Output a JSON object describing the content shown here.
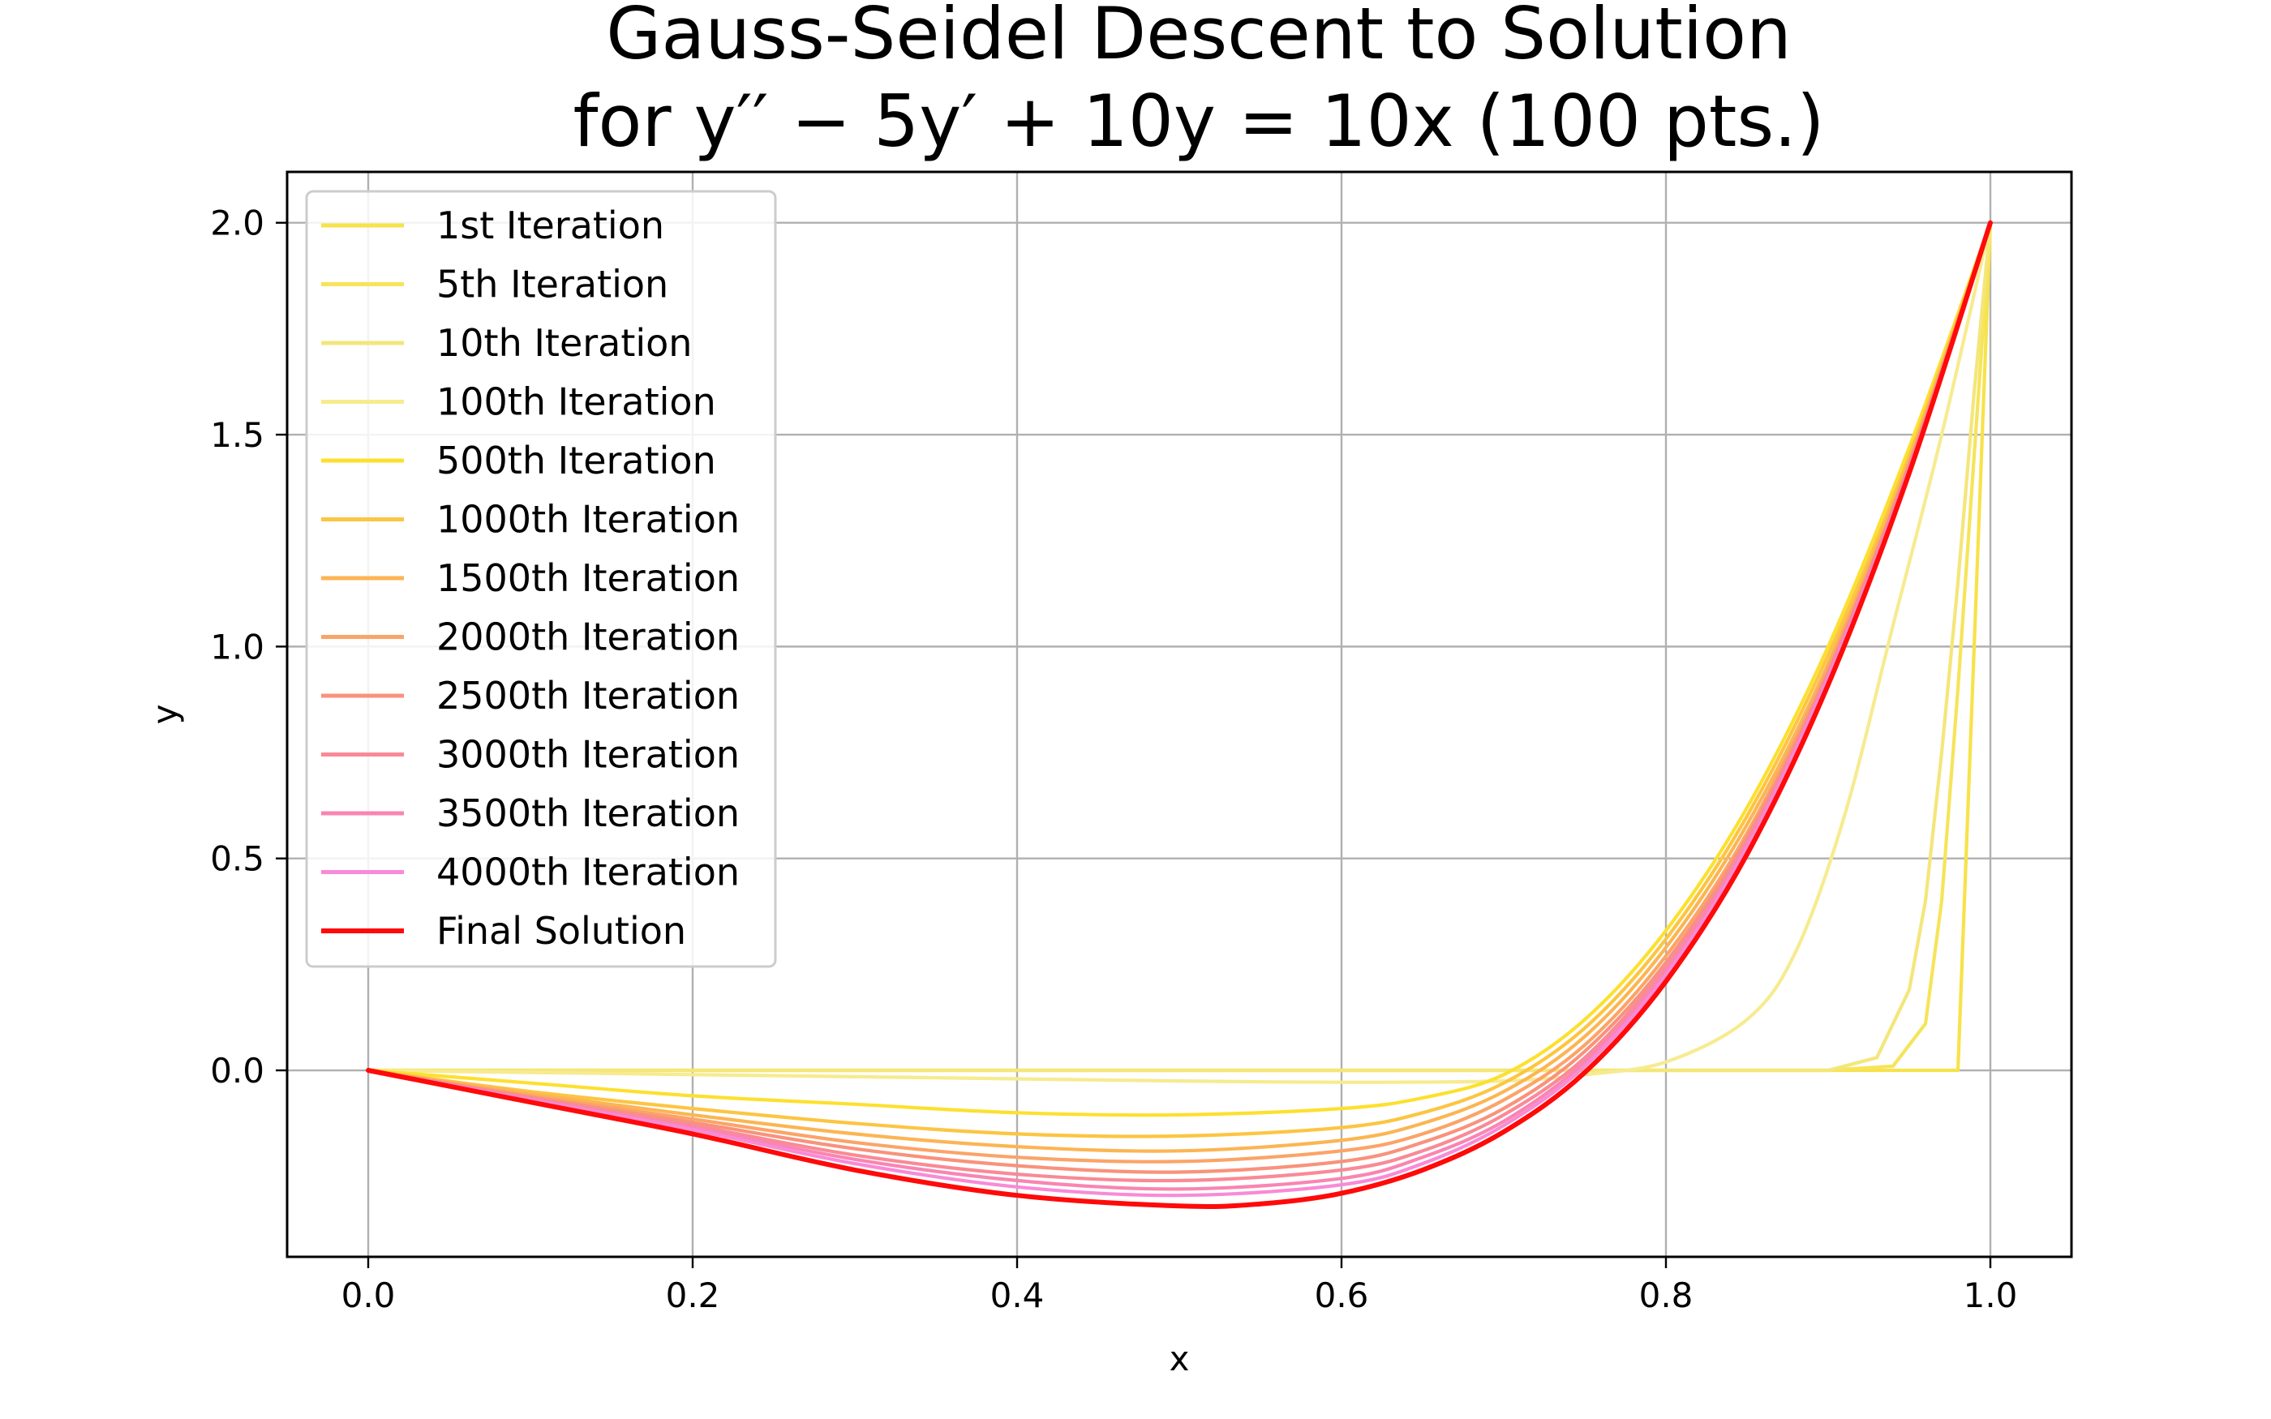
{
  "chart_data": {
    "type": "line",
    "title_line1": "Gauss-Seidel Descent to Solution",
    "title_line2": "for y′′ − 5y′ + 10y = 10x (100 pts.)",
    "xlabel": "x",
    "ylabel": "y",
    "xlim": [
      -0.05,
      1.05
    ],
    "ylim": [
      -0.44,
      2.12
    ],
    "xticks": [
      "0.0",
      "0.2",
      "0.4",
      "0.6",
      "0.8",
      "1.0"
    ],
    "yticks": [
      "0.0",
      "0.5",
      "1.0",
      "1.5",
      "2.0"
    ],
    "grid": true,
    "legend_position": "top-left",
    "series": [
      {
        "name": "1st Iteration",
        "color": "#f7e24a",
        "x": [
          0,
          0.1,
          0.2,
          0.3,
          0.4,
          0.5,
          0.6,
          0.7,
          0.8,
          0.9,
          0.95,
          0.97,
          0.98,
          0.99,
          1.0
        ],
        "y": [
          0,
          0,
          0,
          0,
          0,
          0,
          0,
          0,
          0,
          0,
          0,
          0,
          0,
          1.0,
          2.0
        ]
      },
      {
        "name": "5th Iteration",
        "color": "#f6e45a",
        "x": [
          0,
          0.2,
          0.4,
          0.6,
          0.8,
          0.9,
          0.94,
          0.96,
          0.97,
          0.98,
          0.99,
          1.0
        ],
        "y": [
          0,
          0,
          0,
          0,
          0,
          0,
          0.01,
          0.11,
          0.4,
          0.9,
          1.45,
          2.0
        ]
      },
      {
        "name": "10th Iteration",
        "color": "#f4e67a",
        "x": [
          0,
          0.2,
          0.4,
          0.6,
          0.8,
          0.9,
          0.93,
          0.95,
          0.96,
          0.97,
          0.98,
          0.99,
          1.0
        ],
        "y": [
          0,
          0,
          0,
          0,
          0,
          0,
          0.03,
          0.19,
          0.4,
          0.75,
          1.15,
          1.6,
          2.0
        ]
      },
      {
        "name": "100th Iteration",
        "color": "#f6eb8f",
        "x": [
          0,
          0.1,
          0.2,
          0.3,
          0.4,
          0.5,
          0.6,
          0.7,
          0.75,
          0.8,
          0.85,
          0.88,
          0.91,
          0.94,
          0.97,
          1.0
        ],
        "y": [
          0,
          -0.005,
          -0.01,
          -0.015,
          -0.02,
          -0.025,
          -0.028,
          -0.025,
          -0.01,
          0.02,
          0.12,
          0.28,
          0.6,
          1.05,
          1.5,
          2.0
        ]
      },
      {
        "name": "500th Iteration",
        "color": "#fde02f",
        "x": [
          0,
          0.1,
          0.2,
          0.3,
          0.4,
          0.5,
          0.6,
          0.65,
          0.7,
          0.75,
          0.8,
          0.85,
          0.9,
          0.95,
          1.0
        ],
        "y": [
          0,
          -0.03,
          -0.06,
          -0.08,
          -0.1,
          -0.105,
          -0.09,
          -0.065,
          -0.01,
          0.12,
          0.33,
          0.62,
          1.0,
          1.47,
          2.0
        ]
      },
      {
        "name": "1000th Iteration",
        "color": "#fcc542",
        "x": [
          0,
          0.1,
          0.2,
          0.3,
          0.4,
          0.5,
          0.6,
          0.65,
          0.7,
          0.75,
          0.8,
          0.85,
          0.9,
          0.95,
          1.0
        ],
        "y": [
          0,
          -0.05,
          -0.09,
          -0.125,
          -0.15,
          -0.155,
          -0.135,
          -0.1,
          -0.03,
          0.1,
          0.31,
          0.6,
          0.98,
          1.45,
          2.0
        ]
      },
      {
        "name": "1500th Iteration",
        "color": "#fcb553",
        "x": [
          0,
          0.1,
          0.2,
          0.3,
          0.4,
          0.5,
          0.6,
          0.65,
          0.7,
          0.75,
          0.8,
          0.85,
          0.9,
          0.95,
          1.0
        ],
        "y": [
          0,
          -0.055,
          -0.105,
          -0.15,
          -0.18,
          -0.19,
          -0.165,
          -0.125,
          -0.05,
          0.08,
          0.29,
          0.58,
          0.96,
          1.44,
          2.0
        ]
      },
      {
        "name": "2000th Iteration",
        "color": "#fba468",
        "x": [
          0,
          0.1,
          0.2,
          0.3,
          0.4,
          0.5,
          0.6,
          0.65,
          0.7,
          0.75,
          0.8,
          0.85,
          0.9,
          0.95,
          1.0
        ],
        "y": [
          0,
          -0.06,
          -0.115,
          -0.17,
          -0.205,
          -0.215,
          -0.19,
          -0.15,
          -0.07,
          0.06,
          0.27,
          0.56,
          0.95,
          1.43,
          2.0
        ]
      },
      {
        "name": "2500th Iteration",
        "color": "#f9927c",
        "x": [
          0,
          0.1,
          0.2,
          0.3,
          0.4,
          0.5,
          0.6,
          0.65,
          0.7,
          0.75,
          0.8,
          0.85,
          0.9,
          0.95,
          1.0
        ],
        "y": [
          0,
          -0.063,
          -0.123,
          -0.185,
          -0.225,
          -0.24,
          -0.215,
          -0.17,
          -0.09,
          0.045,
          0.255,
          0.55,
          0.94,
          1.43,
          2.0
        ]
      },
      {
        "name": "3000th Iteration",
        "color": "#f98a96",
        "x": [
          0,
          0.1,
          0.2,
          0.3,
          0.4,
          0.5,
          0.6,
          0.65,
          0.7,
          0.75,
          0.8,
          0.85,
          0.9,
          0.95,
          1.0
        ],
        "y": [
          0,
          -0.066,
          -0.13,
          -0.2,
          -0.245,
          -0.26,
          -0.235,
          -0.19,
          -0.105,
          0.03,
          0.245,
          0.54,
          0.935,
          1.425,
          2.0
        ]
      },
      {
        "name": "3500th Iteration",
        "color": "#f985b2",
        "x": [
          0,
          0.1,
          0.2,
          0.3,
          0.4,
          0.5,
          0.6,
          0.65,
          0.7,
          0.75,
          0.8,
          0.85,
          0.9,
          0.95,
          1.0
        ],
        "y": [
          0,
          -0.068,
          -0.135,
          -0.21,
          -0.26,
          -0.28,
          -0.255,
          -0.205,
          -0.12,
          0.02,
          0.235,
          0.535,
          0.93,
          1.42,
          2.0
        ]
      },
      {
        "name": "4000th Iteration",
        "color": "#f98ad6",
        "x": [
          0,
          0.1,
          0.2,
          0.3,
          0.4,
          0.5,
          0.6,
          0.65,
          0.7,
          0.75,
          0.8,
          0.85,
          0.9,
          0.95,
          1.0
        ],
        "y": [
          0,
          -0.07,
          -0.14,
          -0.22,
          -0.275,
          -0.295,
          -0.27,
          -0.22,
          -0.13,
          0.01,
          0.225,
          0.525,
          0.925,
          1.415,
          2.0
        ]
      },
      {
        "name": "Final Solution",
        "color": "#ff0a0a",
        "x": [
          0,
          0.1,
          0.2,
          0.3,
          0.4,
          0.5,
          0.55,
          0.6,
          0.65,
          0.7,
          0.75,
          0.8,
          0.85,
          0.9,
          0.95,
          1.0
        ],
        "y": [
          0,
          -0.075,
          -0.15,
          -0.235,
          -0.295,
          -0.32,
          -0.315,
          -0.29,
          -0.235,
          -0.145,
          -0.005,
          0.21,
          0.51,
          0.91,
          1.41,
          2.0
        ]
      }
    ]
  }
}
